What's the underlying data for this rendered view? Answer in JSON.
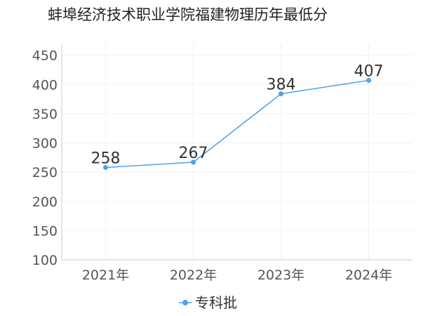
{
  "chart_data": {
    "type": "line",
    "title": "蚌埠经济技术职业学院福建物理历年最低分",
    "categories": [
      "2021年",
      "2022年",
      "2023年",
      "2024年"
    ],
    "series": [
      {
        "name": "专科批",
        "values": [
          258,
          267,
          384,
          407
        ],
        "color": "#4aa3ee"
      }
    ],
    "yticks": [
      100,
      150,
      200,
      250,
      300,
      350,
      400,
      450
    ],
    "ylim": [
      100,
      470
    ],
    "grid": true,
    "legend": "bottom-center"
  }
}
